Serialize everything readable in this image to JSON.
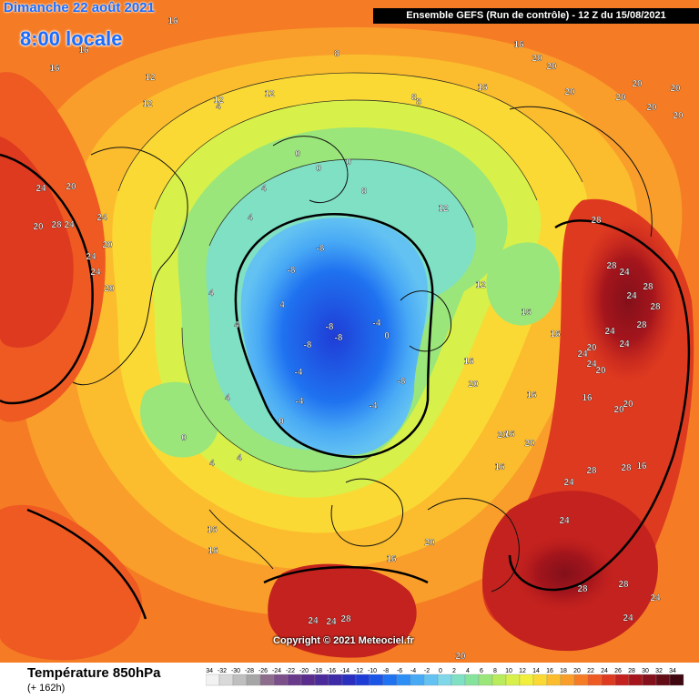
{
  "header": {
    "date_text": "Dimanche 22 août 2021",
    "time_text": "8:00 locale",
    "run_text": "Ensemble GEFS  (Run de contrôle)  -  12 Z du 15/08/2021"
  },
  "footer": {
    "title": "Température 850hPa",
    "lead_time": "(+ 162h)",
    "copyright": "Copyright © 2021 Meteociel.fr"
  },
  "legend": {
    "ticks": [
      "-34",
      "-32",
      "-30",
      "-28",
      "-26",
      "-24",
      "-22",
      "-20",
      "-18",
      "-16",
      "-14",
      "-12",
      "-10",
      "-8",
      "-6",
      "-4",
      "-2",
      "0",
      "2",
      "4",
      "6",
      "8",
      "10",
      "12",
      "14",
      "16",
      "18",
      "20",
      "22",
      "24",
      "26",
      "28",
      "30",
      "32",
      "34"
    ],
    "colors": [
      "#f2f2f2",
      "#d9d9d9",
      "#bfbfbf",
      "#a6a6a6",
      "#8c6d8c",
      "#7a4f8a",
      "#6a3a8a",
      "#5a2c8c",
      "#4b2a9a",
      "#3d2aa8",
      "#2b2fc0",
      "#1f3dd6",
      "#1a55e6",
      "#1f72f0",
      "#2d8ff5",
      "#48a9f5",
      "#63c2f2",
      "#7fd7e8",
      "#7fe0c4",
      "#86e39c",
      "#9ae67a",
      "#b8ec5c",
      "#d7f04a",
      "#f2ef3c",
      "#fbd934",
      "#fbbd2e",
      "#f99e2a",
      "#f57c25",
      "#ee5a22",
      "#de3a20",
      "#c4221e",
      "#a4151c",
      "#83101a",
      "#630c16",
      "#3f0810"
    ]
  },
  "contour_labels": [
    {
      "t": "16"
    },
    {
      "t": "16"
    },
    {
      "t": "16"
    },
    {
      "t": "12"
    },
    {
      "t": "12"
    },
    {
      "t": "12"
    },
    {
      "t": "12"
    },
    {
      "t": "8"
    },
    {
      "t": "8"
    },
    {
      "t": "8"
    },
    {
      "t": "16"
    },
    {
      "t": "16"
    },
    {
      "t": "20"
    },
    {
      "t": "20"
    },
    {
      "t": "20"
    },
    {
      "t": "20"
    },
    {
      "t": "20"
    },
    {
      "t": "20"
    },
    {
      "t": "20"
    },
    {
      "t": "20"
    },
    {
      "t": "24"
    },
    {
      "t": "20"
    },
    {
      "t": "20"
    },
    {
      "t": "24"
    },
    {
      "t": "28"
    },
    {
      "t": "24"
    },
    {
      "t": "24"
    },
    {
      "t": "24"
    },
    {
      "t": "20"
    },
    {
      "t": "20"
    },
    {
      "t": "28"
    },
    {
      "t": "28"
    },
    {
      "t": "28"
    },
    {
      "t": "24"
    },
    {
      "t": "24"
    },
    {
      "t": "24"
    },
    {
      "t": "20"
    },
    {
      "t": "24"
    },
    {
      "t": "28"
    },
    {
      "t": "28"
    },
    {
      "t": "24"
    },
    {
      "t": "24"
    },
    {
      "t": "28"
    },
    {
      "t": "28"
    },
    {
      "t": "24"
    },
    {
      "t": "20"
    },
    {
      "t": "20"
    },
    {
      "t": "16"
    },
    {
      "t": "16"
    },
    {
      "t": "20"
    },
    {
      "t": "20"
    },
    {
      "t": "16"
    },
    {
      "t": "16"
    },
    {
      "t": "16"
    },
    {
      "t": "16"
    },
    {
      "t": "24"
    },
    {
      "t": "28"
    },
    {
      "t": "28"
    },
    {
      "t": "24"
    },
    {
      "t": "24"
    },
    {
      "t": "4"
    },
    {
      "t": "4"
    },
    {
      "t": "4"
    },
    {
      "t": "0"
    },
    {
      "t": "0"
    },
    {
      "t": "0"
    },
    {
      "t": "4"
    },
    {
      "t": "4"
    },
    {
      "t": "4"
    },
    {
      "t": "4"
    },
    {
      "t": "-8"
    },
    {
      "t": "-8"
    },
    {
      "t": "-8"
    },
    {
      "t": "-8"
    },
    {
      "t": "-8"
    },
    {
      "t": "-8"
    },
    {
      "t": "-4"
    },
    {
      "t": "-4"
    },
    {
      "t": "-4"
    },
    {
      "t": "-4"
    },
    {
      "t": "0"
    },
    {
      "t": "0"
    },
    {
      "t": "0"
    },
    {
      "t": "4"
    },
    {
      "t": "4"
    },
    {
      "t": "8"
    },
    {
      "t": "12"
    },
    {
      "t": "12"
    },
    {
      "t": "16"
    },
    {
      "t": "16"
    },
    {
      "t": "20"
    },
    {
      "t": "20"
    },
    {
      "t": "16"
    },
    {
      "t": "16"
    },
    {
      "t": "24"
    },
    {
      "t": "28"
    },
    {
      "t": "24"
    },
    {
      "t": "16"
    },
    {
      "t": "20"
    },
    {
      "t": "20"
    }
  ]
}
